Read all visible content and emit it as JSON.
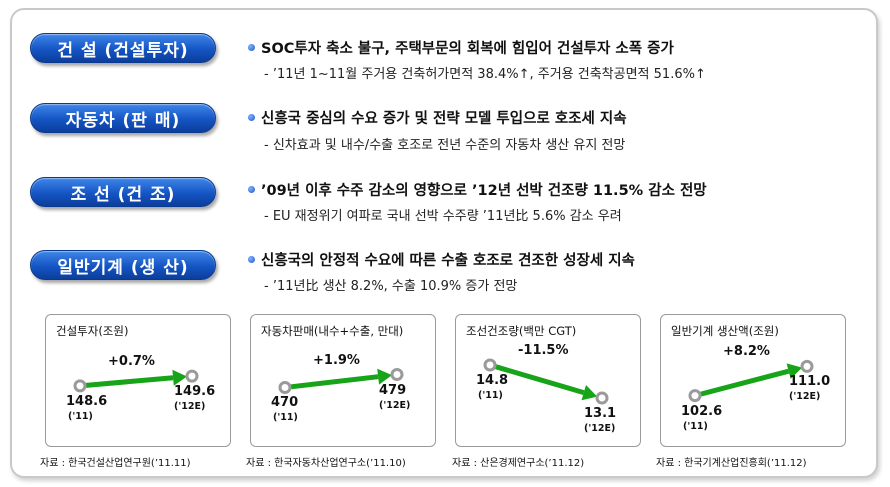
{
  "sections": [
    {
      "label": "건  설 (건설투자)",
      "headline": "SOC투자 축소 불구, 주택부문의 회복에 힘입어  건설투자 소폭 증가",
      "detail": "- ’11년 1~11월 주거용 건축허가면적 38.4%↑, 주거용 건축착공면적 51.6%↑"
    },
    {
      "label": "자동차 (판  매)",
      "headline": "신흥국 중심의 수요 증가 및 전략 모델 투입으로 호조세  지속",
      "detail": "- 신차효과 및 내수/수출 호조로 전년 수준의 자동차 생산 유지 전망"
    },
    {
      "label": "조  선 (건  조)",
      "headline": "’09년 이후 수주 감소의 영향으로 ’12년 선박 건조량 11.5% 감소 전망",
      "detail": "-  EU 재정위기 여파로 국내 선박 수주량 ’11년比 5.6% 감소 우려"
    },
    {
      "label": "일반기계 (생  산)",
      "headline": "신흥국의 안정적 수요에 따른 수출 호조로 견조한 성장세 지속",
      "detail": "- ’11년比 생산 8.2%, 수출 10.9% 증가 전망"
    }
  ],
  "chart_data": [
    {
      "type": "line",
      "title": "건설투자(조원)",
      "x": [
        "('11)",
        "('12E)"
      ],
      "values": [
        148.6,
        149.6
      ],
      "value_labels": [
        "148.6",
        "149.6"
      ],
      "change_label": "+0.7%",
      "source": "자료 : 한국건설산업연구원(’11.11)"
    },
    {
      "type": "line",
      "title": "자동차판매(내수+수출, 만대)",
      "x": [
        "('11)",
        "('12E)"
      ],
      "values": [
        470,
        479
      ],
      "value_labels": [
        "470",
        "479"
      ],
      "change_label": "+1.9%",
      "source": "자료 : 한국자동차산업연구소(’11.10)"
    },
    {
      "type": "line",
      "title": "조선건조량(백만 CGT)",
      "x": [
        "('11)",
        "('12E)"
      ],
      "values": [
        14.8,
        13.1
      ],
      "value_labels": [
        "14.8",
        "13.1"
      ],
      "change_label": "-11.5%",
      "source": "자료 : 산은경제연구소(’11.12)"
    },
    {
      "type": "line",
      "title": "일반기계 생산액(조원)",
      "x": [
        "('11)",
        "('12E)"
      ],
      "values": [
        102.6,
        111.0
      ],
      "value_labels": [
        "102.6",
        "111.0"
      ],
      "change_label": "+8.2%",
      "source": "자료 : 한국기계산업진흥회(’11.12)"
    }
  ],
  "colors": {
    "pill_blue": "#1455c4",
    "arrow_green": "#18a418",
    "marker_gray": "#9a9a9a"
  }
}
